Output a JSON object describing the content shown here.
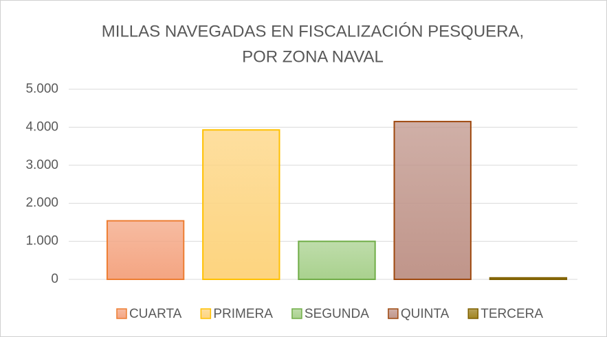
{
  "chart_data": {
    "type": "bar",
    "title": [
      "MILLAS NAVEGADAS  EN FISCALIZACIÓN  PESQUERA,",
      "POR ZONA NAVAL"
    ],
    "categories": [
      "CUARTA",
      "PRIMERA",
      "SEGUNDA",
      "QUINTA",
      "TERCERA"
    ],
    "values": [
      1540,
      3930,
      1000,
      4150,
      40
    ],
    "colors": [
      "#f4a582",
      "#fdd47f",
      "#a9d18e",
      "#c0958a",
      "#a08420"
    ],
    "edge_colors": [
      "#ed7d31",
      "#ffc000",
      "#70ad47",
      "#9e480e",
      "#7f6000"
    ],
    "ylim": [
      0,
      5000
    ],
    "yticks": [
      0,
      {
        "value": 1000,
        "label": "1.000"
      },
      {
        "value": 2000,
        "label": "2.000"
      },
      {
        "value": 3000,
        "label": "3.000"
      },
      {
        "value": 4000,
        "label": "4.000"
      },
      {
        "value": 5000,
        "label": "5.000"
      }
    ],
    "grid": true,
    "legend": "bottom"
  }
}
